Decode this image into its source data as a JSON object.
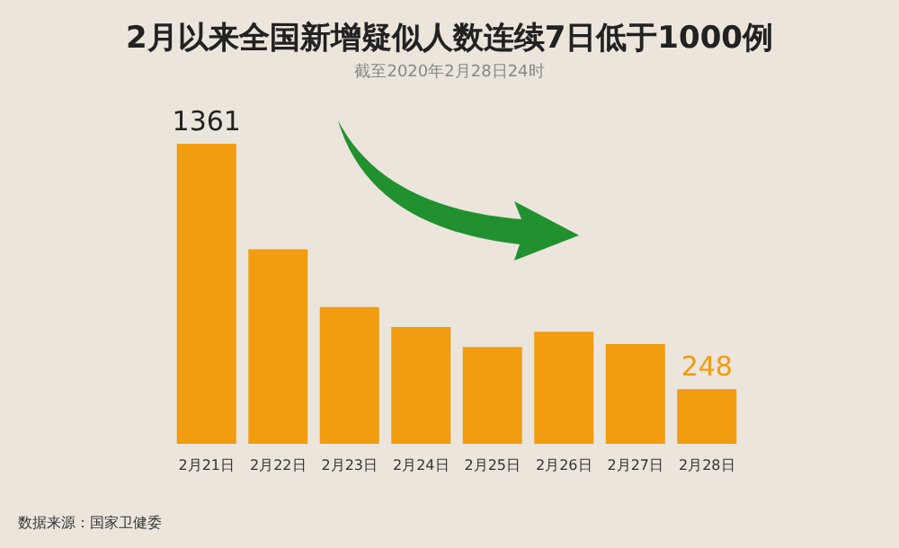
{
  "chart_data": {
    "type": "bar",
    "title": "2月以来全国新增疑似人数连续7日低于1000例",
    "subtitle": "截至2020年2月28日24时",
    "categories": [
      "2月21日",
      "2月22日",
      "2月23日",
      "2月24日",
      "2月25日",
      "2月26日",
      "2月27日",
      "2月28日"
    ],
    "values": [
      1361,
      882,
      620,
      530,
      439,
      508,
      452,
      248
    ],
    "value_labels": [
      "1361",
      null,
      null,
      null,
      null,
      null,
      null,
      "248"
    ],
    "color": "#f29c0f",
    "annotations": [
      "数据来源：国家卫健委"
    ]
  }
}
